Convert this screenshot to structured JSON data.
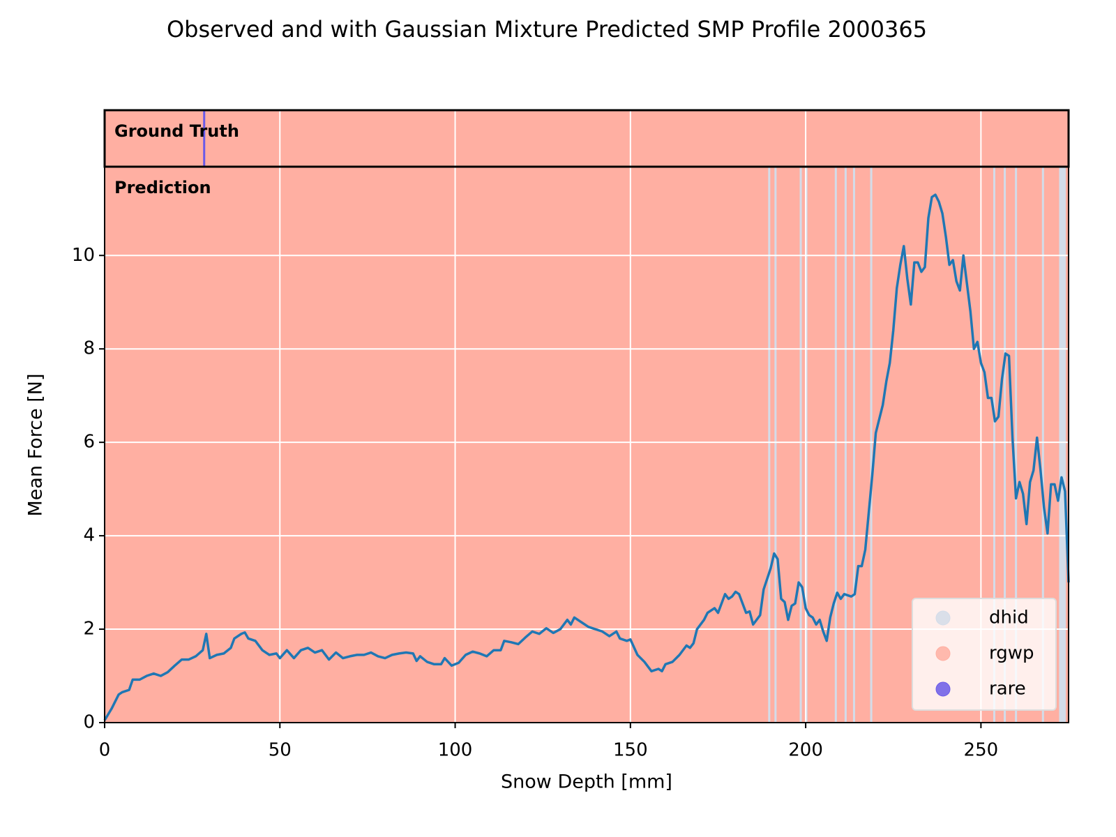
{
  "chart_data": {
    "type": "line",
    "title": "Observed and with Gaussian Mixture Predicted SMP Profile 2000365",
    "xlabel": "Snow Depth [mm]",
    "ylabel": "Mean Force [N]",
    "xlim": [
      0,
      275
    ],
    "ylim": [
      0,
      11.9
    ],
    "xticks": [
      0,
      50,
      100,
      150,
      200,
      250
    ],
    "yticks": [
      0,
      2,
      4,
      6,
      8,
      10
    ],
    "grid": true,
    "legend_loc": "lower right",
    "x": [
      0,
      2,
      4,
      5,
      7,
      8,
      10,
      12,
      14,
      16,
      18,
      20,
      22,
      24,
      26,
      28,
      29,
      30,
      32,
      34,
      36,
      37,
      39,
      40,
      41,
      43,
      45,
      47,
      49,
      50,
      52,
      54,
      56,
      58,
      60,
      62,
      64,
      66,
      68,
      70,
      72,
      74,
      76,
      78,
      80,
      82,
      84,
      86,
      88,
      89,
      90,
      92,
      94,
      96,
      97,
      99,
      101,
      103,
      105,
      107,
      109,
      111,
      113,
      114,
      116,
      118,
      120,
      122,
      124,
      126,
      128,
      130,
      132,
      133,
      134,
      136,
      138,
      140,
      142,
      144,
      146,
      147,
      149,
      150,
      152,
      154,
      156,
      158,
      159,
      160,
      162,
      164,
      166,
      167,
      168,
      169,
      171,
      172,
      174,
      175,
      177,
      178,
      179,
      180,
      181,
      183,
      184,
      185,
      187,
      188,
      190,
      191,
      192,
      193,
      194,
      195,
      196,
      197,
      198,
      199,
      200,
      201,
      202,
      203,
      204,
      205,
      206,
      207,
      208,
      209,
      210,
      211,
      213,
      214,
      215,
      216,
      217,
      218,
      219,
      220,
      222,
      223,
      224,
      225,
      226,
      227,
      228,
      229,
      230,
      231,
      232,
      233,
      234,
      235,
      236,
      237,
      238,
      239,
      240,
      241,
      242,
      243,
      244,
      245,
      246,
      247,
      248,
      249,
      250,
      251,
      252,
      253,
      254,
      255,
      256,
      257,
      258,
      259,
      260,
      261,
      262,
      263,
      264,
      265,
      266,
      267,
      268,
      269,
      270,
      271,
      272,
      273,
      274,
      275
    ],
    "series": [
      {
        "color": "#1f77b4",
        "values": [
          0.05,
          0.3,
          0.6,
          0.65,
          0.7,
          0.92,
          0.92,
          1.0,
          1.05,
          1.0,
          1.08,
          1.22,
          1.35,
          1.35,
          1.42,
          1.55,
          1.9,
          1.38,
          1.45,
          1.48,
          1.6,
          1.8,
          1.9,
          1.93,
          1.8,
          1.75,
          1.55,
          1.45,
          1.48,
          1.38,
          1.55,
          1.38,
          1.55,
          1.6,
          1.5,
          1.55,
          1.35,
          1.5,
          1.38,
          1.42,
          1.45,
          1.45,
          1.5,
          1.42,
          1.38,
          1.45,
          1.48,
          1.5,
          1.48,
          1.32,
          1.42,
          1.3,
          1.25,
          1.25,
          1.38,
          1.22,
          1.28,
          1.45,
          1.52,
          1.48,
          1.42,
          1.55,
          1.55,
          1.75,
          1.72,
          1.68,
          1.82,
          1.95,
          1.9,
          2.02,
          1.92,
          2.0,
          2.2,
          2.1,
          2.25,
          2.15,
          2.05,
          2.0,
          1.95,
          1.85,
          1.95,
          1.8,
          1.75,
          1.78,
          1.45,
          1.3,
          1.1,
          1.15,
          1.1,
          1.25,
          1.3,
          1.45,
          1.65,
          1.6,
          1.7,
          2.0,
          2.2,
          2.35,
          2.45,
          2.35,
          2.75,
          2.65,
          2.7,
          2.8,
          2.75,
          2.35,
          2.38,
          2.1,
          2.3,
          2.85,
          3.3,
          3.62,
          3.5,
          2.65,
          2.58,
          2.2,
          2.5,
          2.55,
          3.0,
          2.9,
          2.45,
          2.3,
          2.25,
          2.1,
          2.2,
          1.95,
          1.75,
          2.25,
          2.55,
          2.78,
          2.65,
          2.75,
          2.7,
          2.75,
          3.35,
          3.35,
          3.7,
          4.5,
          5.3,
          6.2,
          6.8,
          7.3,
          7.7,
          8.4,
          9.3,
          9.8,
          10.2,
          9.5,
          8.95,
          9.85,
          9.85,
          9.65,
          9.75,
          10.8,
          11.25,
          11.3,
          11.15,
          10.9,
          10.4,
          9.8,
          9.9,
          9.45,
          9.25,
          10.0,
          9.4,
          8.8,
          8.0,
          8.15,
          7.7,
          7.5,
          6.95,
          6.95,
          6.45,
          6.55,
          7.35,
          7.9,
          7.85,
          6.1,
          4.8,
          5.15,
          4.9,
          4.25,
          5.15,
          5.4,
          6.1,
          5.4,
          4.6,
          4.05,
          5.1,
          5.1,
          4.75,
          5.25,
          4.95,
          3.0
        ]
      }
    ],
    "classes": [
      {
        "name": "dhid",
        "color": "#d3dce9"
      },
      {
        "name": "rgwp",
        "color": "#ffafa2"
      },
      {
        "name": "rare",
        "color": "#6a5ae8"
      }
    ],
    "panels": [
      {
        "label": "Ground Truth",
        "segments": [
          {
            "start": 0,
            "end": 275,
            "class": "rgwp"
          },
          {
            "start": 28.1,
            "end": 28.7,
            "class": "rare"
          }
        ]
      },
      {
        "label": "Prediction",
        "segments": [
          {
            "start": 0,
            "end": 275,
            "class": "rgwp"
          },
          {
            "start": 189.3,
            "end": 189.9,
            "class": "dhid"
          },
          {
            "start": 191.1,
            "end": 191.7,
            "class": "dhid"
          },
          {
            "start": 198.3,
            "end": 198.9,
            "class": "dhid"
          },
          {
            "start": 199.9,
            "end": 200.5,
            "class": "dhid"
          },
          {
            "start": 208.3,
            "end": 208.9,
            "class": "dhid"
          },
          {
            "start": 211.1,
            "end": 211.7,
            "class": "dhid"
          },
          {
            "start": 213.5,
            "end": 214.1,
            "class": "dhid"
          },
          {
            "start": 218.4,
            "end": 219.0,
            "class": "dhid"
          },
          {
            "start": 253.5,
            "end": 254.1,
            "class": "dhid"
          },
          {
            "start": 256.5,
            "end": 257.1,
            "class": "dhid"
          },
          {
            "start": 259.7,
            "end": 260.3,
            "class": "dhid"
          },
          {
            "start": 267.4,
            "end": 268.0,
            "class": "dhid"
          },
          {
            "start": 272.3,
            "end": 274.2,
            "class": "dhid"
          }
        ]
      }
    ]
  }
}
